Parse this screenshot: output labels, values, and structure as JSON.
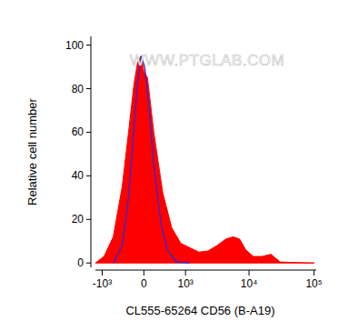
{
  "chart_data": {
    "type": "area",
    "x_label": "CL555-65264 CD56 (B-A19)",
    "y_label": "Relative cell number",
    "annotation": "WWW.PTGLAB.COM",
    "xlim": [
      -1300,
      108000
    ],
    "ylim": [
      -2,
      104
    ],
    "xticks": [
      {
        "value": -1000,
        "label": "-10³"
      },
      0,
      {
        "value": 1000,
        "label": "10³"
      },
      {
        "value": 10000,
        "label": "10⁴"
      },
      {
        "value": 100000,
        "label": "10⁵"
      }
    ],
    "yticks": [
      0,
      20,
      40,
      60,
      80,
      100
    ],
    "series": [
      {
        "type": "area",
        "color": "#ff0000",
        "x": [
          -1300,
          -930,
          -633,
          -408,
          -275,
          -173,
          -109,
          -46,
          0,
          62,
          173,
          349,
          561,
          830,
          1183,
          1660,
          2310,
          3200,
          4420,
          5700,
          7150,
          8940,
          11600,
          15900,
          21700,
          30000,
          41200,
          101000
        ],
        "values": [
          0,
          3,
          12,
          35,
          60,
          82,
          92,
          95,
          88,
          85,
          60,
          32,
          16,
          9,
          7,
          5,
          5.5,
          8,
          11,
          12,
          11,
          6,
          3,
          3,
          4,
          0.5,
          0.3,
          0
        ]
      },
      {
        "type": "line",
        "color": "#2b2bd6",
        "x": [
          -633,
          -408,
          -275,
          -173,
          -109,
          -46,
          15,
          93,
          173,
          312,
          449,
          686,
          1183
        ],
        "values": [
          0,
          8,
          30,
          62,
          82,
          95,
          90,
          70,
          45,
          18,
          6,
          0.5,
          0
        ]
      }
    ]
  }
}
